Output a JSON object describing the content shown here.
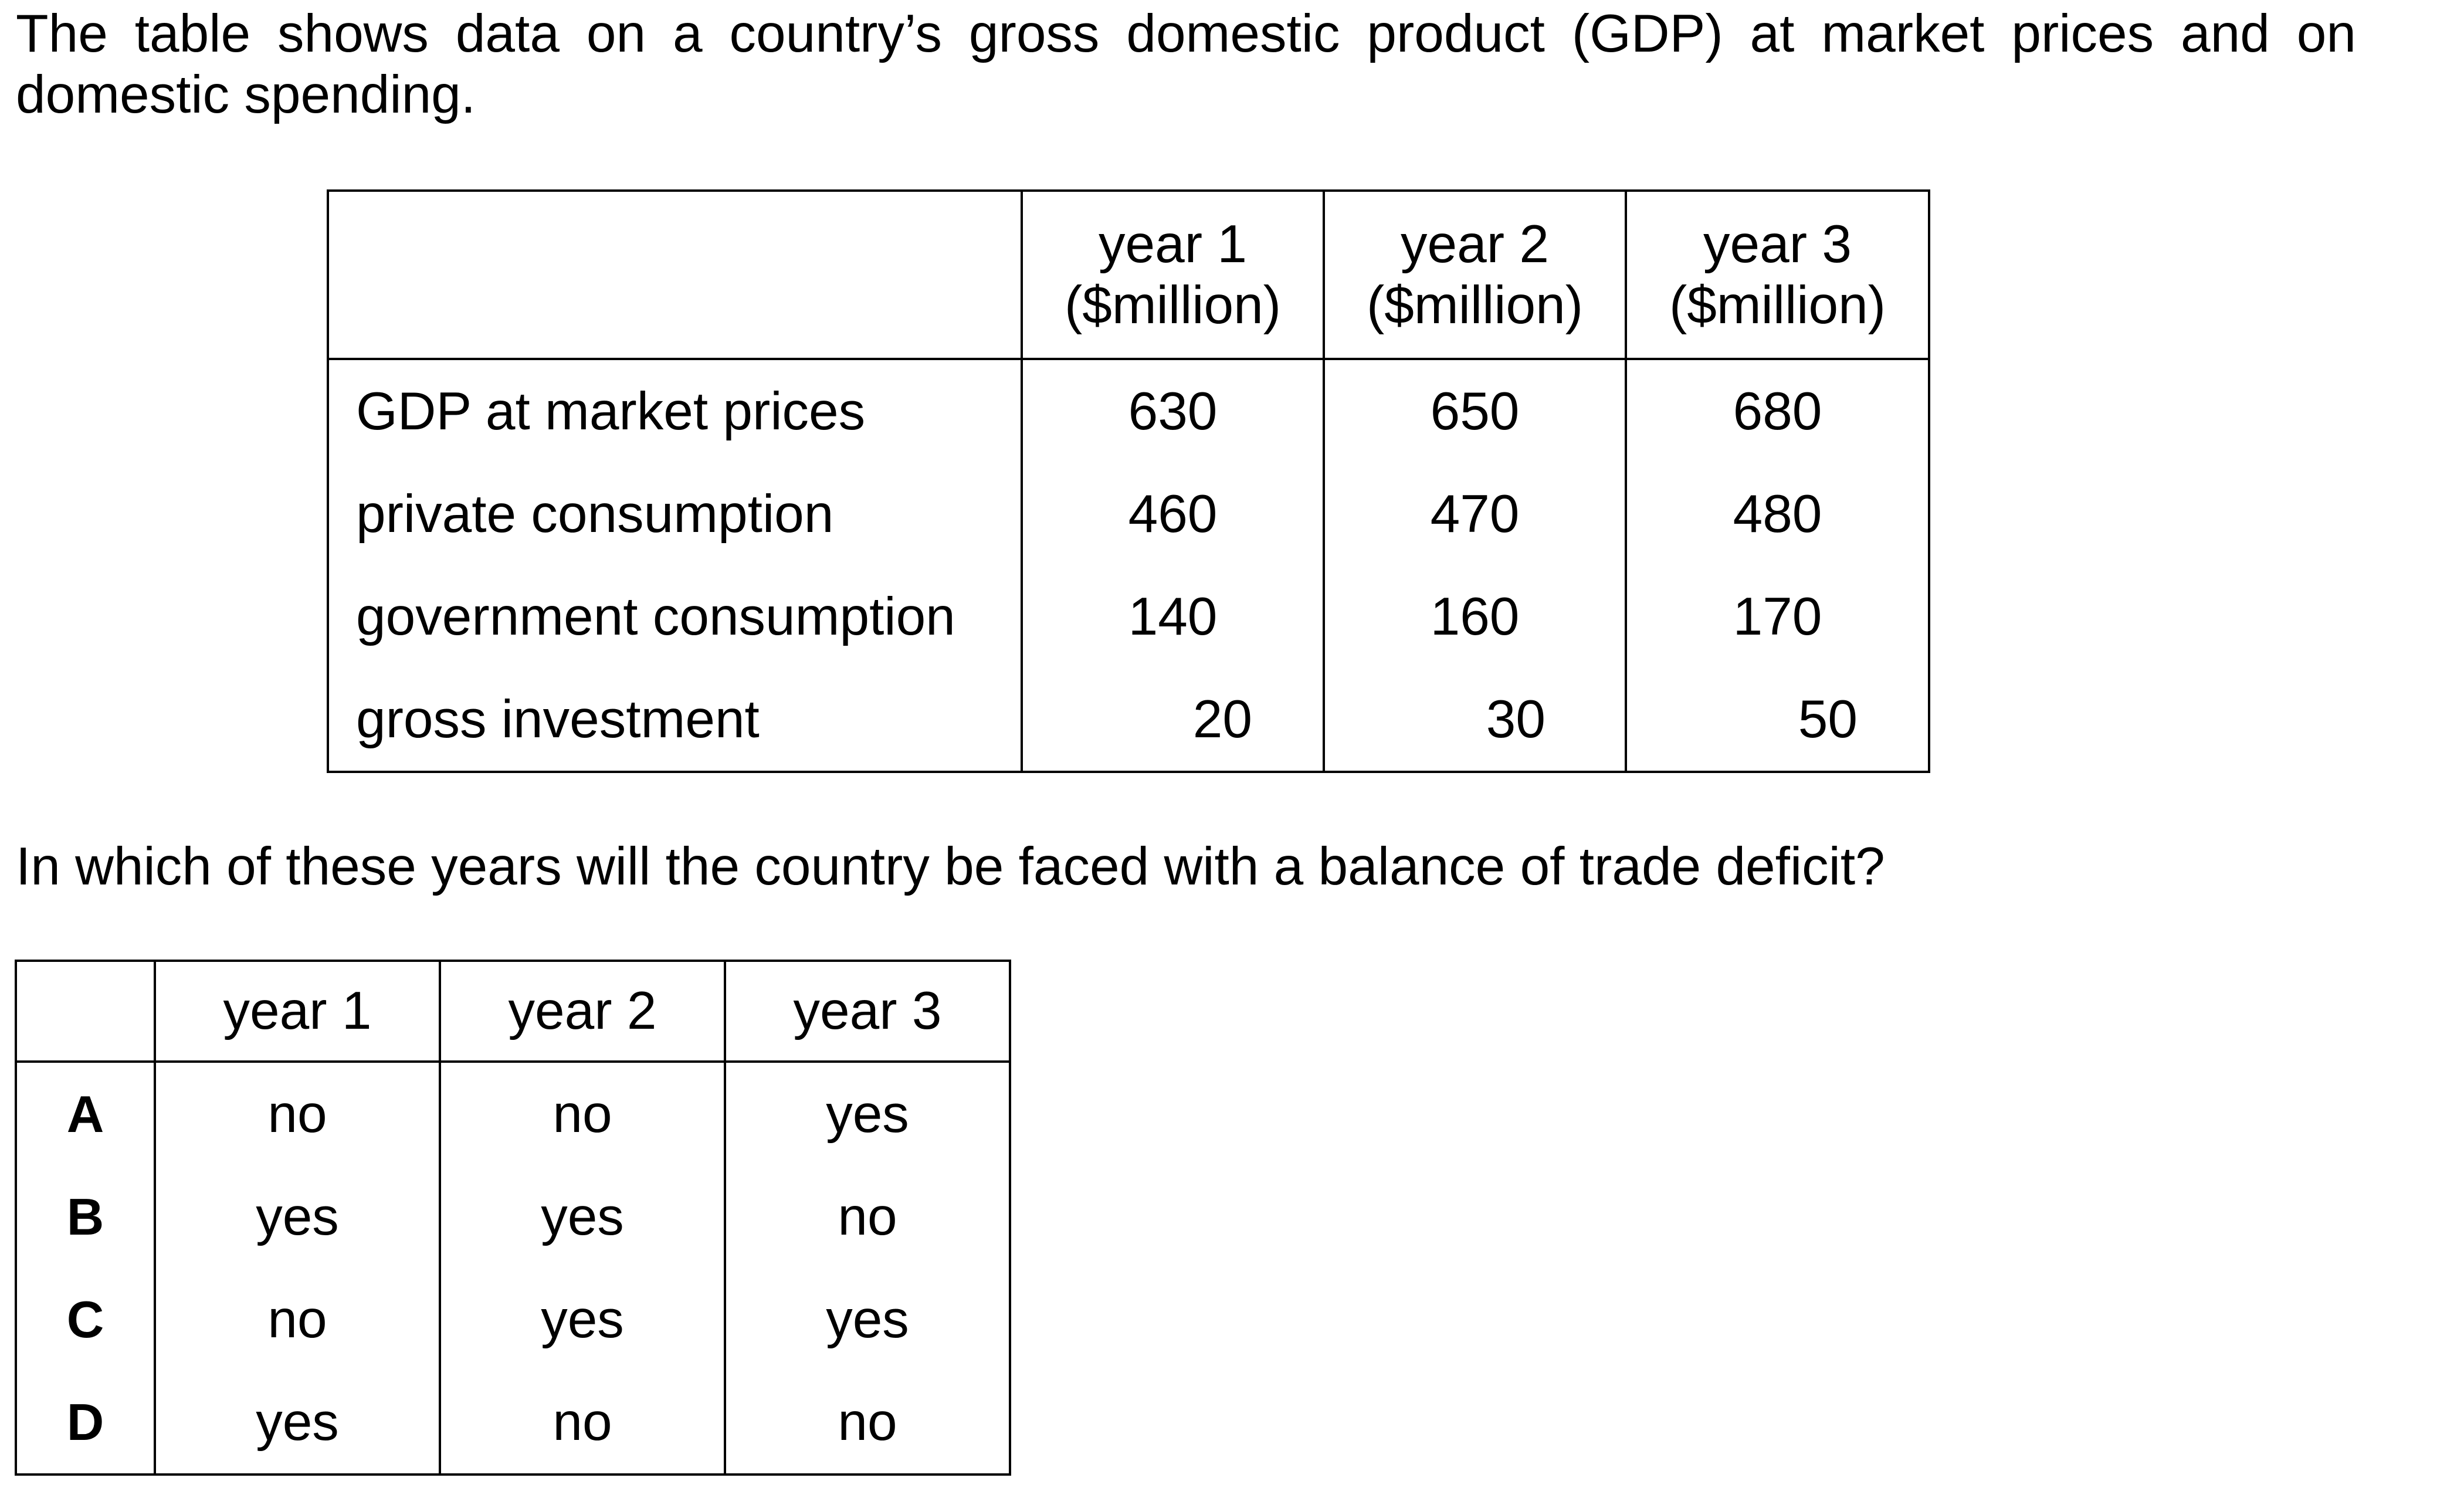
{
  "intro_text": "The table shows data on a country’s gross domestic product (GDP) at market prices and on domestic spending.",
  "data_table": {
    "headers": [
      {
        "line1": "year 1",
        "line2": "($million)"
      },
      {
        "line1": "year 2",
        "line2": "($million)"
      },
      {
        "line1": "year 3",
        "line2": "($million)"
      }
    ],
    "rows": [
      {
        "label": "GDP at market prices",
        "values": [
          "630",
          "650",
          "680"
        ]
      },
      {
        "label": "private consumption",
        "values": [
          "460",
          "470",
          "480"
        ]
      },
      {
        "label": "government consumption",
        "values": [
          "140",
          "160",
          "170"
        ]
      },
      {
        "label": "gross investment",
        "values": [
          "20",
          "30",
          "50"
        ]
      }
    ]
  },
  "question_text": "In which of these years will the country be faced with a balance of trade deficit?",
  "options_table": {
    "headers": [
      "year 1",
      "year 2",
      "year 3"
    ],
    "rows": [
      {
        "letter": "A",
        "values": [
          "no",
          "no",
          "yes"
        ]
      },
      {
        "letter": "B",
        "values": [
          "yes",
          "yes",
          "no"
        ]
      },
      {
        "letter": "C",
        "values": [
          "no",
          "yes",
          "yes"
        ]
      },
      {
        "letter": "D",
        "values": [
          "yes",
          "no",
          "no"
        ]
      }
    ]
  }
}
